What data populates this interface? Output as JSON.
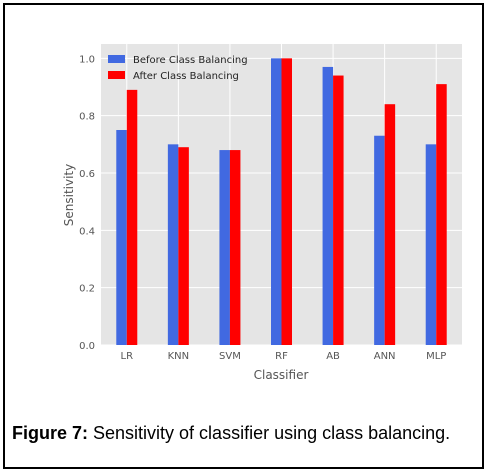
{
  "chart_data": {
    "type": "bar",
    "xlabel": "Classifier",
    "ylabel": "Sensitivity",
    "ylim": [
      0,
      1.05
    ],
    "yticks": [
      "0.0",
      "0.2",
      "0.4",
      "0.6",
      "0.8",
      "1.0"
    ],
    "categories": [
      "LR",
      "KNN",
      "SVM",
      "RF",
      "AB",
      "ANN",
      "MLP"
    ],
    "grid": true,
    "legend_position": "top-left",
    "series": [
      {
        "name": "Before Class Balancing",
        "color": "#4169e1",
        "values": [
          0.75,
          0.7,
          0.68,
          1.0,
          0.97,
          0.73,
          0.7
        ]
      },
      {
        "name": "After Class Balancing",
        "color": "#ff0000",
        "values": [
          0.89,
          0.69,
          0.68,
          1.0,
          0.94,
          0.84,
          0.91
        ]
      }
    ]
  },
  "caption": {
    "label": "Figure 7:",
    "text": " Sensitivity of classifier using class balancing."
  }
}
